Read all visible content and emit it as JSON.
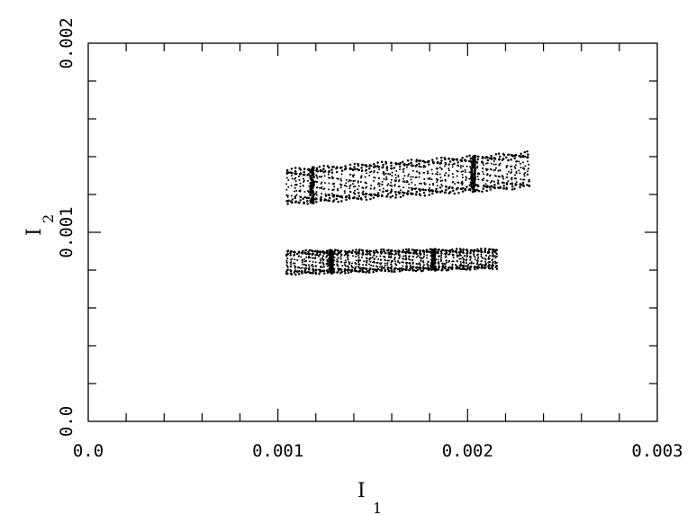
{
  "chart_data": {
    "type": "scatter",
    "xlabel": "I",
    "xlabel_subscript": "1",
    "ylabel": "I",
    "ylabel_subscript": "2",
    "xlim": [
      0,
      0.003
    ],
    "ylim": [
      0,
      0.002
    ],
    "x_tick_labels": [
      "0.0",
      "0.001",
      "0.002",
      "0.003"
    ],
    "y_tick_labels": [
      "0.0",
      "0.001",
      "0.002"
    ],
    "grid": false,
    "marker_color": "#000000",
    "point_bands": [
      {
        "name": "",
        "x_range": [
          0.00105,
          0.00232
        ],
        "y_center": [
          0.00124,
          0.00133
        ],
        "y_halfwidth": [
          9e-05,
          9e-05
        ],
        "dense_x": [
          0.00118,
          0.00203
        ]
      },
      {
        "name": "",
        "x_range": [
          0.00105,
          0.00215
        ],
        "y_center": [
          0.00084,
          0.00086
        ],
        "y_halfwidth": [
          6e-05,
          5e-05
        ],
        "dense_x": [
          0.00128,
          0.00182
        ]
      }
    ]
  }
}
